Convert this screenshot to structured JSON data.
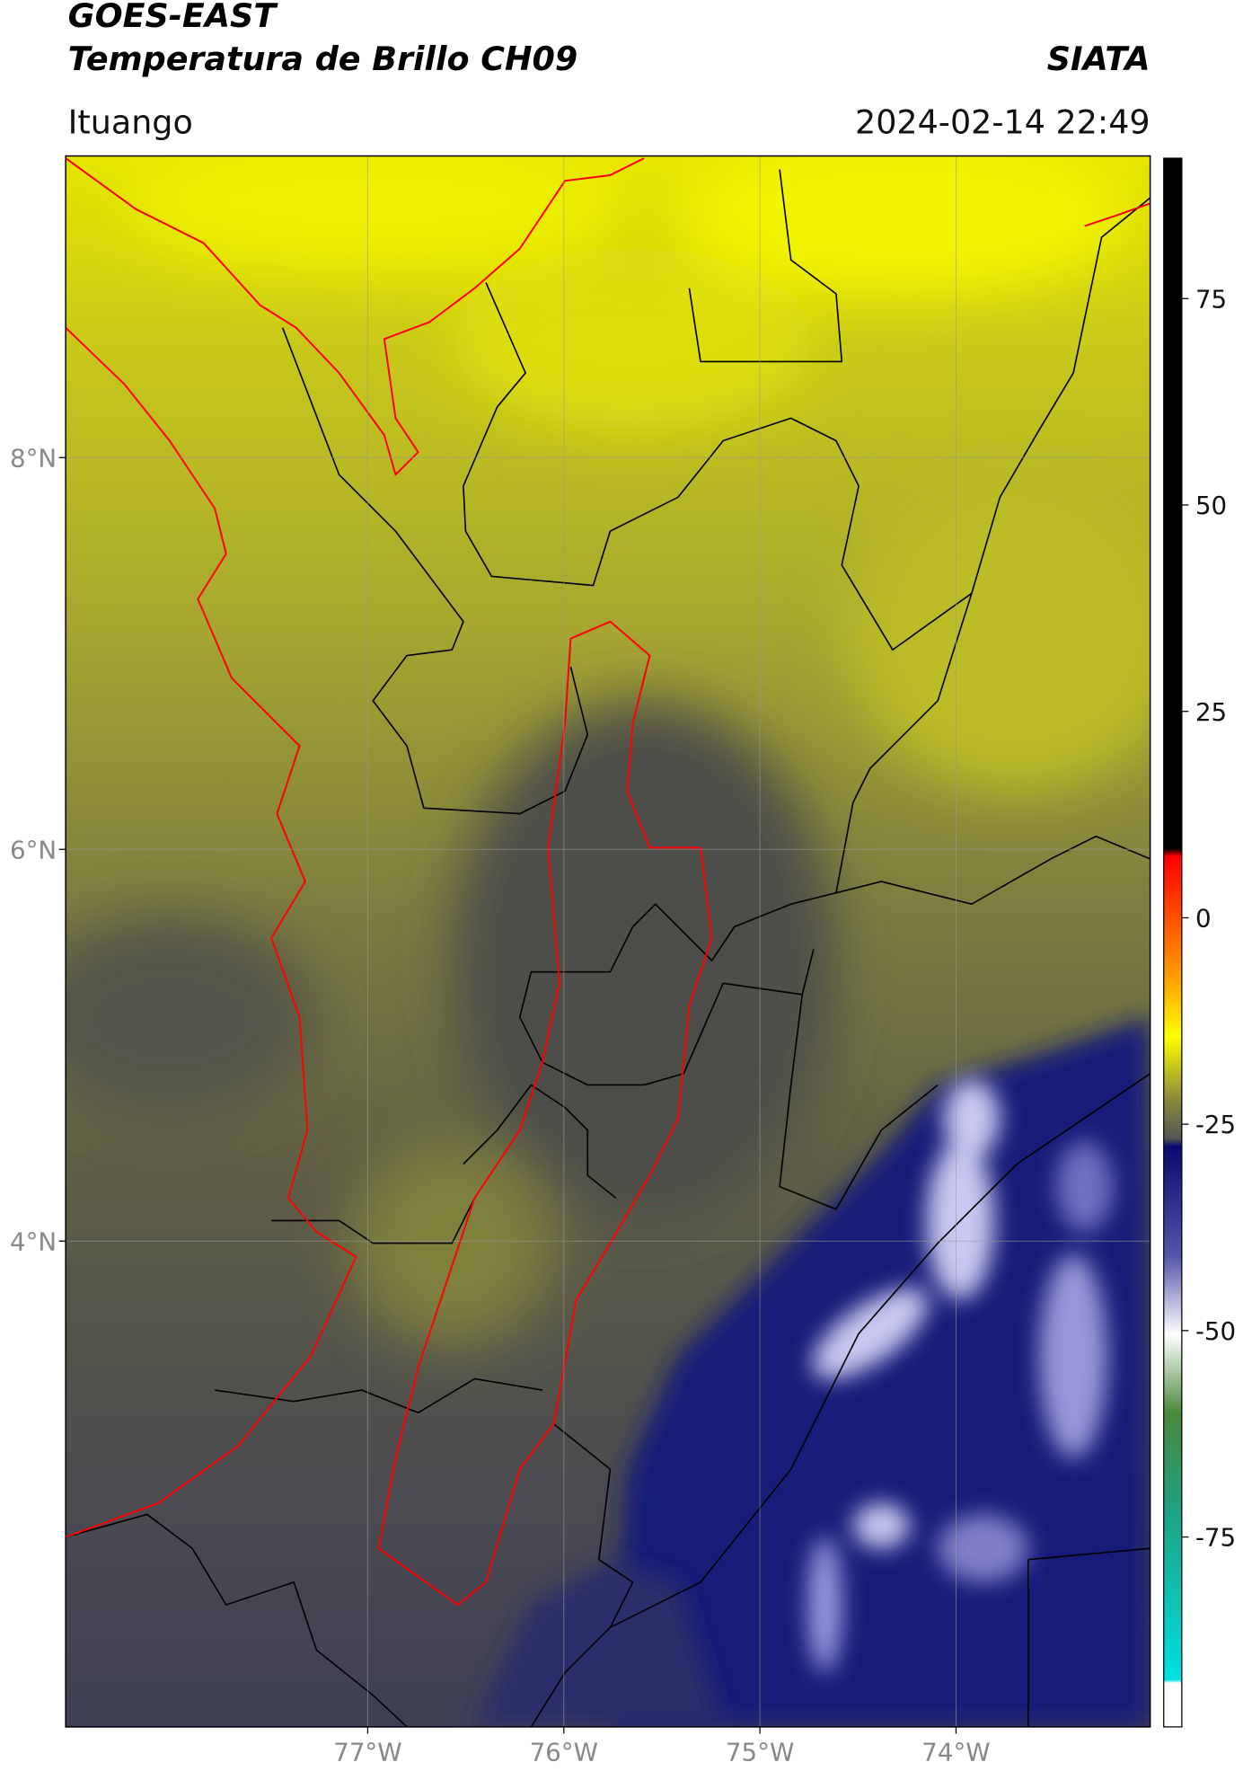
{
  "header": {
    "title": "GOES-EAST",
    "subtitle": "Temperatura de Brillo CH09",
    "brand": "SIATA",
    "location": "Ituango",
    "timestamp": "2024-02-14 22:49"
  },
  "map": {
    "lon_lim": [
      -78.54,
      -73.01
    ],
    "lat_lim": [
      1.52,
      9.54
    ],
    "lat_ticks": [
      {
        "value": 8,
        "label": "8°N"
      },
      {
        "value": 6,
        "label": "6°N"
      },
      {
        "value": 4,
        "label": "4°N"
      }
    ],
    "lon_ticks": [
      {
        "value": -77,
        "label": "77°W"
      },
      {
        "value": -76,
        "label": "76°W"
      },
      {
        "value": -75,
        "label": "75°W"
      },
      {
        "value": -74,
        "label": "74°W"
      }
    ]
  },
  "colorbar": {
    "lim": [
      -98,
      92
    ],
    "ticks": [
      75,
      50,
      25,
      0,
      -25,
      -50,
      -75
    ]
  }
}
